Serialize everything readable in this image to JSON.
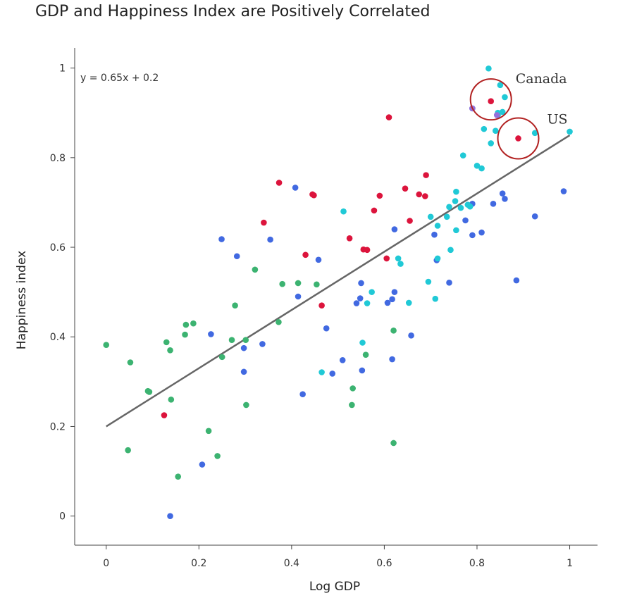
{
  "chart_data": {
    "type": "scatter",
    "title": "GDP and Happiness Index are Positively Correlated",
    "xlabel": "Log GDP",
    "ylabel": "Happiness index",
    "xlim": [
      -0.068,
      1.06
    ],
    "ylim": [
      -0.065,
      1.045
    ],
    "xticks": [
      0,
      0.2,
      0.4,
      0.6,
      0.8,
      1
    ],
    "yticks": [
      0,
      0.2,
      0.4,
      0.6,
      0.8,
      1
    ],
    "grid": false,
    "legend": "none",
    "trendline": {
      "label": "y = 0.65x + 0.2",
      "slope": 0.65,
      "intercept": 0.2,
      "x_range": [
        0,
        1
      ],
      "color": "#666666"
    },
    "annotations": [
      {
        "text": "Canada",
        "x": 0.83,
        "y": 0.93
      },
      {
        "text": "US",
        "x": 0.889,
        "y": 0.843
      }
    ],
    "annotation_color": "#b22222",
    "series": [
      {
        "color": "#3cb371",
        "points": [
          [
            0.0,
            0.382
          ],
          [
            0.047,
            0.147
          ],
          [
            0.052,
            0.343
          ],
          [
            0.09,
            0.279
          ],
          [
            0.093,
            0.277
          ],
          [
            0.13,
            0.388
          ],
          [
            0.138,
            0.37
          ],
          [
            0.14,
            0.26
          ],
          [
            0.155,
            0.088
          ],
          [
            0.17,
            0.405
          ],
          [
            0.172,
            0.427
          ],
          [
            0.188,
            0.43
          ],
          [
            0.221,
            0.19
          ],
          [
            0.24,
            0.134
          ],
          [
            0.25,
            0.355
          ],
          [
            0.271,
            0.393
          ],
          [
            0.278,
            0.47
          ],
          [
            0.301,
            0.393
          ],
          [
            0.302,
            0.248
          ],
          [
            0.321,
            0.55
          ],
          [
            0.372,
            0.433
          ],
          [
            0.38,
            0.518
          ],
          [
            0.414,
            0.52
          ],
          [
            0.454,
            0.517
          ],
          [
            0.53,
            0.248
          ],
          [
            0.532,
            0.285
          ],
          [
            0.56,
            0.36
          ],
          [
            0.62,
            0.414
          ],
          [
            0.62,
            0.163
          ]
        ]
      },
      {
        "color": "#4169e1",
        "points": [
          [
            0.138,
            0.0
          ],
          [
            0.207,
            0.115
          ],
          [
            0.226,
            0.406
          ],
          [
            0.249,
            0.618
          ],
          [
            0.282,
            0.58
          ],
          [
            0.297,
            0.322
          ],
          [
            0.297,
            0.375
          ],
          [
            0.337,
            0.384
          ],
          [
            0.354,
            0.617
          ],
          [
            0.408,
            0.733
          ],
          [
            0.414,
            0.49
          ],
          [
            0.424,
            0.272
          ],
          [
            0.458,
            0.572
          ],
          [
            0.475,
            0.419
          ],
          [
            0.488,
            0.318
          ],
          [
            0.51,
            0.348
          ],
          [
            0.54,
            0.475
          ],
          [
            0.548,
            0.486
          ],
          [
            0.55,
            0.52
          ],
          [
            0.552,
            0.325
          ],
          [
            0.607,
            0.476
          ],
          [
            0.617,
            0.484
          ],
          [
            0.617,
            0.35
          ],
          [
            0.622,
            0.5
          ],
          [
            0.622,
            0.64
          ],
          [
            0.658,
            0.403
          ],
          [
            0.708,
            0.628
          ],
          [
            0.713,
            0.571
          ],
          [
            0.74,
            0.521
          ],
          [
            0.775,
            0.66
          ],
          [
            0.79,
            0.627
          ],
          [
            0.79,
            0.697
          ],
          [
            0.79,
            0.91
          ],
          [
            0.81,
            0.633
          ],
          [
            0.835,
            0.697
          ],
          [
            0.855,
            0.72
          ],
          [
            0.86,
            0.708
          ],
          [
            0.885,
            0.526
          ],
          [
            0.925,
            0.669
          ],
          [
            0.987,
            0.725
          ]
        ]
      },
      {
        "color": "#20c9d6",
        "points": [
          [
            0.465,
            0.321
          ],
          [
            0.512,
            0.68
          ],
          [
            0.553,
            0.387
          ],
          [
            0.563,
            0.475
          ],
          [
            0.573,
            0.5
          ],
          [
            0.63,
            0.575
          ],
          [
            0.635,
            0.563
          ],
          [
            0.653,
            0.476
          ],
          [
            0.695,
            0.523
          ],
          [
            0.7,
            0.668
          ],
          [
            0.71,
            0.485
          ],
          [
            0.715,
            0.648
          ],
          [
            0.715,
            0.575
          ],
          [
            0.735,
            0.668
          ],
          [
            0.74,
            0.69
          ],
          [
            0.743,
            0.594
          ],
          [
            0.753,
            0.703
          ],
          [
            0.755,
            0.638
          ],
          [
            0.755,
            0.724
          ],
          [
            0.765,
            0.688
          ],
          [
            0.77,
            0.805
          ],
          [
            0.78,
            0.695
          ],
          [
            0.785,
            0.691
          ],
          [
            0.8,
            0.782
          ],
          [
            0.81,
            0.776
          ],
          [
            0.815,
            0.864
          ],
          [
            0.825,
            0.999
          ],
          [
            0.83,
            0.832
          ],
          [
            0.84,
            0.86
          ],
          [
            0.845,
            0.895
          ],
          [
            0.845,
            0.9
          ],
          [
            0.85,
            0.962
          ],
          [
            0.855,
            0.902
          ],
          [
            0.86,
            0.935
          ],
          [
            0.925,
            0.855
          ],
          [
            1.0,
            0.858
          ]
        ]
      },
      {
        "color": "#dc143c",
        "points": [
          [
            0.125,
            0.225
          ],
          [
            0.34,
            0.655
          ],
          [
            0.373,
            0.744
          ],
          [
            0.43,
            0.583
          ],
          [
            0.445,
            0.718
          ],
          [
            0.448,
            0.716
          ],
          [
            0.465,
            0.47
          ],
          [
            0.525,
            0.62
          ],
          [
            0.555,
            0.595
          ],
          [
            0.563,
            0.594
          ],
          [
            0.578,
            0.682
          ],
          [
            0.59,
            0.715
          ],
          [
            0.605,
            0.575
          ],
          [
            0.61,
            0.89
          ],
          [
            0.645,
            0.731
          ],
          [
            0.655,
            0.659
          ],
          [
            0.675,
            0.718
          ],
          [
            0.688,
            0.714
          ],
          [
            0.69,
            0.761
          ],
          [
            0.83,
            0.926
          ],
          [
            0.889,
            0.843
          ]
        ]
      },
      {
        "color": "#9370db",
        "points": [
          [
            0.79,
            0.91
          ],
          [
            0.843,
            0.895
          ]
        ]
      }
    ]
  }
}
